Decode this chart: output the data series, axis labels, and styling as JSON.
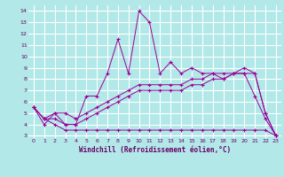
{
  "xlabel": "Windchill (Refroidissement éolien,°C)",
  "background_color": "#b2e8e8",
  "grid_color": "#ffffff",
  "line_color": "#990099",
  "xlim": [
    -0.5,
    23.5
  ],
  "ylim": [
    2.8,
    14.5
  ],
  "yticks": [
    3,
    4,
    5,
    6,
    7,
    8,
    9,
    10,
    11,
    12,
    13,
    14
  ],
  "xticks": [
    0,
    1,
    2,
    3,
    4,
    5,
    6,
    7,
    8,
    9,
    10,
    11,
    12,
    13,
    14,
    15,
    16,
    17,
    18,
    19,
    20,
    21,
    22,
    23
  ],
  "series1_x": [
    0,
    1,
    2,
    3,
    4,
    5,
    6,
    7,
    8,
    9,
    10,
    11,
    12,
    13,
    14,
    15,
    16,
    17,
    18,
    19,
    20,
    21,
    22,
    23
  ],
  "series1_y": [
    5.5,
    4.0,
    5.0,
    4.0,
    4.0,
    6.5,
    6.5,
    8.5,
    11.5,
    8.5,
    14.0,
    13.0,
    8.5,
    9.5,
    8.5,
    9.0,
    8.5,
    8.5,
    8.0,
    8.5,
    8.5,
    6.5,
    4.5,
    3.0
  ],
  "series2_x": [
    0,
    1,
    2,
    3,
    4,
    5,
    6,
    7,
    8,
    9,
    10,
    11,
    12,
    13,
    14,
    15,
    16,
    17,
    18,
    19,
    20,
    21,
    22,
    23
  ],
  "series2_y": [
    5.5,
    4.5,
    5.0,
    5.0,
    4.5,
    5.0,
    5.5,
    6.0,
    6.5,
    7.0,
    7.5,
    7.5,
    7.5,
    7.5,
    7.5,
    8.0,
    8.0,
    8.5,
    8.5,
    8.5,
    9.0,
    8.5,
    5.0,
    3.0
  ],
  "series3_x": [
    0,
    1,
    2,
    3,
    4,
    5,
    6,
    7,
    8,
    9,
    10,
    11,
    12,
    13,
    14,
    15,
    16,
    17,
    18,
    19,
    20,
    21,
    22,
    23
  ],
  "series3_y": [
    5.5,
    4.5,
    4.5,
    4.0,
    4.0,
    4.5,
    5.0,
    5.5,
    6.0,
    6.5,
    7.0,
    7.0,
    7.0,
    7.0,
    7.0,
    7.5,
    7.5,
    8.0,
    8.0,
    8.5,
    8.5,
    8.5,
    5.0,
    3.0
  ],
  "series4_x": [
    0,
    1,
    2,
    3,
    4,
    5,
    6,
    7,
    8,
    9,
    10,
    11,
    12,
    13,
    14,
    15,
    16,
    17,
    18,
    19,
    20,
    21,
    22,
    23
  ],
  "series4_y": [
    5.5,
    4.5,
    4.0,
    3.5,
    3.5,
    3.5,
    3.5,
    3.5,
    3.5,
    3.5,
    3.5,
    3.5,
    3.5,
    3.5,
    3.5,
    3.5,
    3.5,
    3.5,
    3.5,
    3.5,
    3.5,
    3.5,
    3.5,
    3.0
  ]
}
